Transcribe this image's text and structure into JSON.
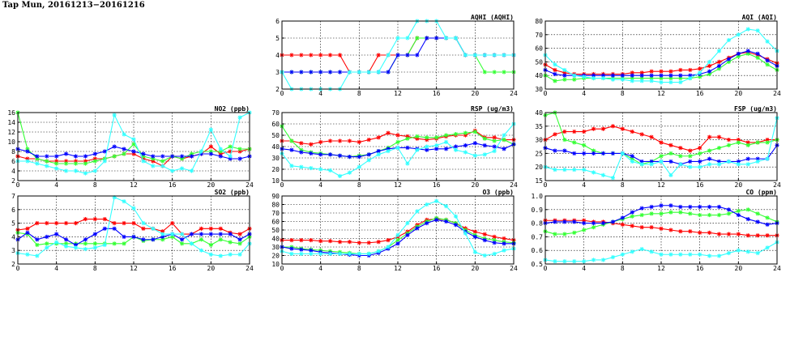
{
  "page_title": "Tap Mun, 20161213−20161216",
  "colors": {
    "red": "#ff0000",
    "green": "#33ff33",
    "blue": "#0000ff",
    "cyan": "#33ffff"
  },
  "chart_data": [
    {
      "id": "aqhi",
      "type": "line",
      "title": "AQHI (AQHI)",
      "xlim": [
        0,
        24
      ],
      "ylim": [
        2,
        6
      ],
      "xticks": [
        "0",
        "4",
        "8",
        "12",
        "16",
        "20",
        "24"
      ],
      "yticks": [
        "2",
        "3",
        "4",
        "5",
        "6"
      ],
      "grid": true,
      "series": [
        {
          "color": "red",
          "values": [
            4,
            4,
            4,
            4,
            4,
            4,
            4,
            3,
            3,
            3,
            4,
            4,
            4,
            4,
            5,
            5,
            5,
            5,
            5,
            4,
            4,
            4,
            4,
            4,
            4
          ]
        },
        {
          "color": "green",
          "values": [
            3,
            3,
            3,
            3,
            3,
            3,
            3,
            3,
            3,
            3,
            3,
            3,
            4,
            4,
            5,
            5,
            5,
            5,
            5,
            4,
            4,
            3,
            3,
            3,
            3
          ]
        },
        {
          "color": "blue",
          "values": [
            3,
            3,
            3,
            3,
            3,
            3,
            3,
            3,
            3,
            3,
            3,
            3,
            4,
            4,
            4,
            5,
            5,
            5,
            5,
            4,
            4,
            4,
            4,
            4,
            4
          ]
        },
        {
          "color": "cyan",
          "values": [
            3,
            2,
            2,
            2,
            2,
            2,
            2,
            3,
            3,
            3,
            3,
            4,
            5,
            5,
            6,
            6,
            6,
            5,
            5,
            4,
            4,
            4,
            4,
            4,
            4
          ]
        }
      ]
    },
    {
      "id": "aqi",
      "type": "line",
      "title": "AQI (AQI)",
      "xlim": [
        0,
        24
      ],
      "ylim": [
        30,
        80
      ],
      "xticks": [
        "0",
        "4",
        "8",
        "12",
        "16",
        "20",
        "24"
      ],
      "yticks": [
        "30",
        "40",
        "50",
        "60",
        "70",
        "80"
      ],
      "grid": true,
      "series": [
        {
          "color": "red",
          "values": [
            48,
            44,
            42,
            41,
            41,
            41,
            41,
            41,
            41,
            42,
            42,
            43,
            43,
            43,
            44,
            44,
            45,
            47,
            50,
            53,
            56,
            57,
            55,
            52,
            49
          ]
        },
        {
          "color": "green",
          "values": [
            40,
            36,
            37,
            37,
            38,
            38,
            38,
            38,
            38,
            38,
            38,
            38,
            38,
            38,
            38,
            38,
            39,
            41,
            45,
            50,
            54,
            56,
            53,
            48,
            44
          ]
        },
        {
          "color": "blue",
          "values": [
            44,
            41,
            40,
            40,
            40,
            40,
            40,
            40,
            40,
            40,
            40,
            40,
            40,
            40,
            40,
            40,
            41,
            43,
            47,
            52,
            56,
            58,
            56,
            51,
            47
          ]
        },
        {
          "color": "cyan",
          "values": [
            55,
            48,
            44,
            40,
            39,
            38,
            38,
            37,
            37,
            36,
            36,
            36,
            35,
            35,
            35,
            38,
            42,
            50,
            58,
            66,
            70,
            74,
            73,
            65,
            58
          ]
        }
      ]
    },
    {
      "id": "no2",
      "type": "line",
      "title": "NO2 (ppb)",
      "xlim": [
        0,
        24
      ],
      "ylim": [
        2,
        16
      ],
      "xticks": [
        "0",
        "4",
        "8",
        "12",
        "16",
        "20",
        "24"
      ],
      "yticks": [
        "2",
        "4",
        "6",
        "8",
        "10",
        "12",
        "14",
        "16"
      ],
      "grid": true,
      "series": [
        {
          "color": "red",
          "values": [
            7,
            6.5,
            6.5,
            6,
            6,
            6,
            6,
            6,
            6.5,
            6.5,
            7,
            7.5,
            7.5,
            6.5,
            6,
            5,
            7,
            6.5,
            7,
            7.5,
            9,
            7.5,
            8,
            8,
            8.5
          ]
        },
        {
          "color": "green",
          "values": [
            16,
            8.5,
            6.5,
            6,
            5.5,
            5.5,
            5.5,
            5.5,
            6,
            6.5,
            7,
            7.5,
            9.5,
            7,
            6.5,
            6,
            7,
            6.5,
            7.5,
            8,
            8,
            8,
            9,
            8.5,
            8.5
          ]
        },
        {
          "color": "blue",
          "values": [
            8.5,
            8,
            7,
            7,
            7,
            7.5,
            7,
            7,
            7.5,
            8,
            9,
            8.5,
            8,
            7.5,
            7,
            7,
            7,
            7,
            7,
            7.5,
            7.5,
            7,
            6.5,
            6.5,
            7
          ]
        },
        {
          "color": "cyan",
          "values": [
            6,
            6,
            5.5,
            5,
            4.5,
            4,
            4,
            3.5,
            4,
            6,
            15.5,
            11.5,
            10.5,
            6,
            5,
            5,
            4,
            4.5,
            4,
            8,
            12.5,
            8.5,
            7,
            15,
            16
          ]
        }
      ]
    },
    {
      "id": "rsp",
      "type": "line",
      "title": "RSP (ug/m3)",
      "xlim": [
        0,
        24
      ],
      "ylim": [
        10,
        70
      ],
      "xticks": [
        "0",
        "4",
        "8",
        "12",
        "16",
        "20",
        "24"
      ],
      "yticks": [
        "10",
        "20",
        "30",
        "40",
        "50",
        "60",
        "70"
      ],
      "grid": true,
      "series": [
        {
          "color": "red",
          "values": [
            45,
            45,
            43,
            42,
            44,
            45,
            45,
            45,
            44,
            46,
            48,
            52,
            50,
            49,
            47,
            46,
            47,
            49,
            50,
            50,
            54,
            48,
            48,
            46,
            46
          ]
        },
        {
          "color": "green",
          "values": [
            58,
            45,
            37,
            35,
            34,
            33,
            32,
            31,
            32,
            33,
            36,
            39,
            44,
            47,
            49,
            48,
            48,
            50,
            51,
            52,
            53,
            47,
            45,
            46,
            42
          ]
        },
        {
          "color": "blue",
          "values": [
            38,
            37,
            35,
            34,
            33,
            33,
            32,
            31,
            31,
            33,
            36,
            38,
            39,
            39,
            38,
            37,
            38,
            38,
            40,
            41,
            43,
            41,
            40,
            38,
            42
          ]
        },
        {
          "color": "cyan",
          "values": [
            34,
            23,
            22,
            21,
            20,
            19,
            14,
            17,
            22,
            28,
            33,
            36,
            39,
            25,
            37,
            40,
            41,
            44,
            37,
            35,
            32,
            33,
            36,
            50,
            60
          ]
        }
      ]
    },
    {
      "id": "fsp",
      "type": "line",
      "title": "FSP (ug/m3)",
      "xlim": [
        0,
        24
      ],
      "ylim": [
        15,
        40
      ],
      "xticks": [
        "0",
        "4",
        "8",
        "12",
        "16",
        "20",
        "24"
      ],
      "yticks": [
        "15",
        "20",
        "25",
        "30",
        "35",
        "40"
      ],
      "grid": true,
      "series": [
        {
          "color": "red",
          "values": [
            30,
            32,
            33,
            33,
            33,
            34,
            34,
            35,
            34,
            33,
            32,
            31,
            29,
            28,
            27,
            26,
            27,
            31,
            31,
            30,
            30,
            29,
            29,
            30,
            30
          ]
        },
        {
          "color": "green",
          "values": [
            39,
            40,
            30,
            29,
            28,
            26,
            25,
            25,
            25,
            23,
            21,
            22,
            24,
            25,
            24,
            24,
            25,
            26,
            27,
            28,
            29,
            28,
            29,
            29,
            30
          ]
        },
        {
          "color": "blue",
          "values": [
            27,
            26,
            26,
            25,
            25,
            25,
            25,
            25,
            25,
            24,
            22,
            22,
            22,
            22,
            21,
            22,
            22,
            23,
            22,
            22,
            22,
            23,
            23,
            23,
            28
          ]
        },
        {
          "color": "cyan",
          "values": [
            20,
            19,
            19,
            19,
            19,
            18,
            17,
            16,
            25,
            22,
            21,
            21,
            22,
            17,
            21,
            20,
            20,
            21,
            21,
            22,
            21,
            21,
            22,
            23,
            38
          ]
        }
      ]
    },
    {
      "id": "so2",
      "type": "line",
      "title": "SO2 (ppb)",
      "xlim": [
        0,
        24
      ],
      "ylim": [
        2,
        7
      ],
      "xticks": [
        "0",
        "4",
        "8",
        "12",
        "16",
        "20",
        "24"
      ],
      "yticks": [
        "2",
        "3",
        "4",
        "5",
        "6",
        "7"
      ],
      "grid": true,
      "series": [
        {
          "color": "red",
          "values": [
            4.5,
            4.6,
            5,
            5,
            5,
            5,
            5,
            5.3,
            5.3,
            5.3,
            5,
            5,
            5,
            4.6,
            4.6,
            4.4,
            5,
            4.2,
            4.2,
            4.6,
            4.6,
            4.6,
            4.3,
            4.2,
            4.6
          ]
        },
        {
          "color": "green",
          "values": [
            4.3,
            4.2,
            3.4,
            3.5,
            3.5,
            3.5,
            3.5,
            3.5,
            3.5,
            3.5,
            3.5,
            3.5,
            4,
            3.7,
            3.8,
            3.8,
            4,
            3.5,
            3.5,
            3.8,
            3.4,
            3.8,
            3.6,
            3.5,
            4
          ]
        },
        {
          "color": "blue",
          "values": [
            3.8,
            4.3,
            3.8,
            4,
            4.2,
            3.8,
            3.4,
            3.8,
            4.2,
            4.6,
            4.6,
            4,
            4,
            3.8,
            3.8,
            4,
            4.2,
            3.8,
            4.2,
            4.2,
            4.2,
            4.2,
            4.2,
            3.8,
            4.2
          ]
        },
        {
          "color": "cyan",
          "values": [
            2.8,
            2.7,
            2.6,
            3.2,
            3.6,
            3.3,
            3.2,
            3.1,
            3.2,
            3.4,
            6.9,
            6.6,
            6.1,
            5,
            4.6,
            4.2,
            4.2,
            4.2,
            3.5,
            3,
            2.7,
            2.6,
            2.7,
            2.7,
            3.5
          ]
        }
      ]
    },
    {
      "id": "o3",
      "type": "line",
      "title": "O3 (ppb)",
      "xlim": [
        0,
        24
      ],
      "ylim": [
        10,
        90
      ],
      "xticks": [
        "0",
        "4",
        "8",
        "12",
        "16",
        "20",
        "24"
      ],
      "yticks": [
        "10",
        "20",
        "30",
        "40",
        "50",
        "60",
        "70",
        "80",
        "90"
      ],
      "grid": true,
      "series": [
        {
          "color": "red",
          "values": [
            38,
            38,
            38,
            38,
            37,
            37,
            36,
            36,
            35,
            35,
            36,
            38,
            42,
            48,
            56,
            62,
            63,
            62,
            58,
            52,
            48,
            45,
            42,
            40,
            38
          ]
        },
        {
          "color": "green",
          "values": [
            30,
            30,
            28,
            27,
            26,
            25,
            24,
            23,
            22,
            22,
            25,
            30,
            38,
            46,
            54,
            60,
            64,
            62,
            58,
            50,
            44,
            40,
            38,
            36,
            35
          ]
        },
        {
          "color": "blue",
          "values": [
            30,
            28,
            27,
            26,
            24,
            23,
            22,
            21,
            20,
            20,
            23,
            28,
            34,
            44,
            52,
            58,
            62,
            60,
            56,
            48,
            42,
            38,
            35,
            34,
            34
          ]
        },
        {
          "color": "cyan",
          "values": [
            25,
            22,
            22,
            22,
            22,
            22,
            22,
            22,
            22,
            22,
            25,
            30,
            44,
            58,
            72,
            80,
            84,
            78,
            66,
            46,
            24,
            20,
            22,
            26,
            28
          ]
        }
      ]
    },
    {
      "id": "co",
      "type": "line",
      "title": "CO (ppm)",
      "xlim": [
        0,
        24
      ],
      "ylim": [
        0.5,
        1.0
      ],
      "xticks": [
        "0",
        "4",
        "8",
        "12",
        "16",
        "20",
        "24"
      ],
      "yticks": [
        "0.5",
        "0.6",
        "0.7",
        "0.8",
        "0.9",
        "1.0"
      ],
      "grid": true,
      "series": [
        {
          "color": "red",
          "values": [
            0.82,
            0.82,
            0.82,
            0.82,
            0.82,
            0.81,
            0.81,
            0.8,
            0.79,
            0.78,
            0.77,
            0.77,
            0.76,
            0.75,
            0.74,
            0.74,
            0.73,
            0.73,
            0.72,
            0.72,
            0.72,
            0.71,
            0.71,
            0.71,
            0.71
          ]
        },
        {
          "color": "green",
          "values": [
            0.74,
            0.72,
            0.72,
            0.73,
            0.75,
            0.77,
            0.79,
            0.81,
            0.83,
            0.85,
            0.86,
            0.87,
            0.87,
            0.88,
            0.88,
            0.87,
            0.86,
            0.86,
            0.86,
            0.87,
            0.89,
            0.9,
            0.87,
            0.84,
            0.81
          ]
        },
        {
          "color": "blue",
          "values": [
            0.8,
            0.81,
            0.81,
            0.81,
            0.8,
            0.8,
            0.8,
            0.81,
            0.84,
            0.88,
            0.91,
            0.92,
            0.93,
            0.93,
            0.92,
            0.92,
            0.92,
            0.92,
            0.92,
            0.9,
            0.86,
            0.83,
            0.81,
            0.79,
            0.8
          ]
        },
        {
          "color": "cyan",
          "values": [
            0.53,
            0.52,
            0.52,
            0.52,
            0.52,
            0.53,
            0.53,
            0.55,
            0.57,
            0.59,
            0.61,
            0.59,
            0.57,
            0.57,
            0.57,
            0.57,
            0.57,
            0.56,
            0.56,
            0.58,
            0.6,
            0.59,
            0.58,
            0.62,
            0.66
          ]
        }
      ]
    }
  ]
}
